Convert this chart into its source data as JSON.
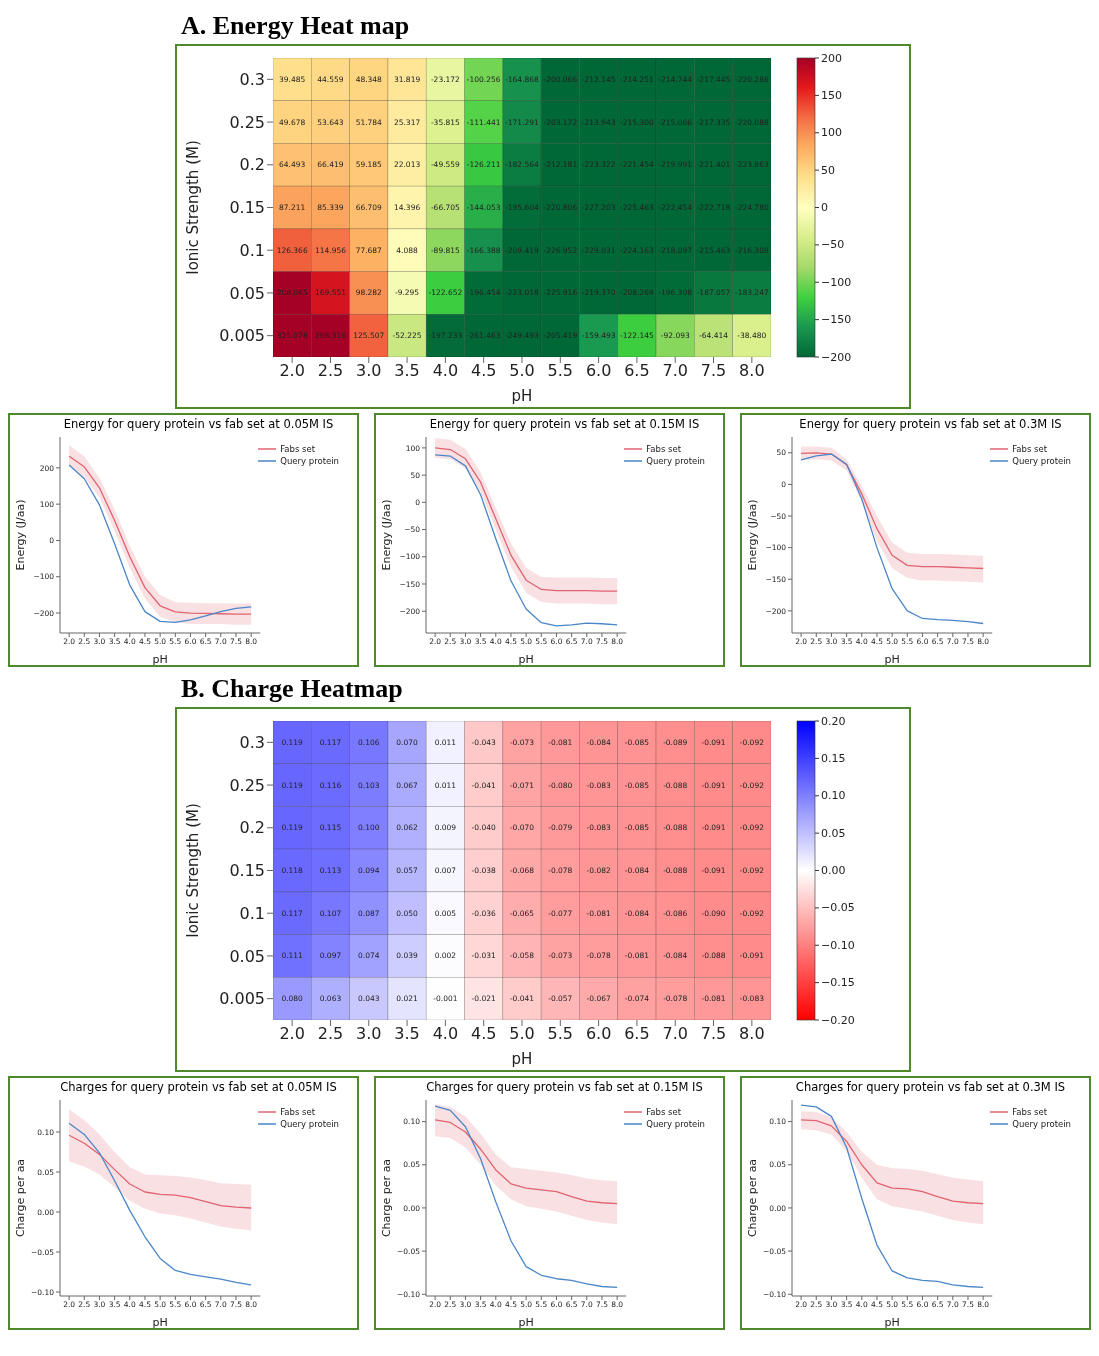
{
  "chart_data": [
    {
      "type": "heatmap",
      "title": "A. Energy Heat map",
      "xlabel": "pH",
      "ylabel": "Ionic Strength (M)",
      "categories": [
        "2.0",
        "2.5",
        "3.0",
        "3.5",
        "4.0",
        "4.5",
        "5.0",
        "5.5",
        "6.0",
        "6.5",
        "7.0",
        "7.5",
        "8.0"
      ],
      "y_categories": [
        "0.3",
        "0.25",
        "0.2",
        "0.15",
        "0.1",
        "0.05",
        "0.005"
      ],
      "cells": [
        [
          39.485,
          44.559,
          48.348,
          31.819,
          -23.172,
          -100.256,
          -164.868,
          -200.066,
          -212.145,
          -214.251,
          -214.744,
          -217.445,
          -220.286
        ],
        [
          49.678,
          53.643,
          51.784,
          25.317,
          -35.815,
          -111.441,
          -171.291,
          -203.172,
          -213.943,
          -215.3,
          -215.066,
          -217.335,
          -220.088
        ],
        [
          64.493,
          66.419,
          59.185,
          22.013,
          -49.559,
          -126.211,
          -182.564,
          -212.181,
          -223.322,
          -221.454,
          -219.991,
          -221.401,
          -223.863
        ],
        [
          87.211,
          85.339,
          66.709,
          14.396,
          -66.705,
          -144.053,
          -195.604,
          -220.806,
          -227.203,
          -225.463,
          -222.454,
          -222.718,
          -224.78
        ],
        [
          126.366,
          114.956,
          77.687,
          4.088,
          -89.815,
          -166.388,
          -209.419,
          -226.952,
          -229.031,
          -224.163,
          -218.097,
          -215.463,
          -216.308
        ],
        [
          208.065,
          169.551,
          98.282,
          -9.295,
          -122.652,
          -196.454,
          -223.018,
          -225.916,
          -219.37,
          -208.269,
          -196.308,
          -187.057,
          -183.247
        ],
        [
          325.078,
          288.316,
          125.507,
          -52.225,
          -197.233,
          -261.463,
          -249.493,
          -205.419,
          -159.493,
          -122.145,
          -92.093,
          -64.414,
          -38.48
        ]
      ],
      "cell_labels": [
        [
          "39.485",
          "44.559",
          "48.348",
          "31.819",
          "-23.172",
          "-100.256",
          "-164.868",
          "-200.066",
          "-212.145",
          "-214.251",
          "-214.744",
          "-217.445",
          "-220.286"
        ],
        [
          "49.678",
          "53.643",
          "51.784",
          "25.317",
          "-35.815",
          "-111.441",
          "-171.291",
          "-203.172",
          "-213.943",
          "-215.300",
          "-215.066",
          "-217.335",
          "-220.088"
        ],
        [
          "64.493",
          "66.419",
          "59.185",
          "22.013",
          "-49.559",
          "-126.211",
          "-182.564",
          "-212.181",
          "-223.322",
          "-221.454",
          "-219.991",
          "-221.401",
          "-223.863"
        ],
        [
          "87.211",
          "85.339",
          "66.709",
          "14.396",
          "-66.705",
          "-144.053",
          "-195.604",
          "-220.806",
          "-227.203",
          "-225.463",
          "-222.454",
          "-222.718",
          "-224.780"
        ],
        [
          "126.366",
          "114.956",
          "77.687",
          "4.088",
          "-89.815",
          "-166.388",
          "-209.419",
          "-226.952",
          "-229.031",
          "-224.163",
          "-218.097",
          "-215.463",
          "-216.308"
        ],
        [
          "208.065",
          "169.551",
          "98.282",
          "-9.295",
          "-122.652",
          "-196.454",
          "-223.018",
          "-225.916",
          "-219.370",
          "-208.269",
          "-196.308",
          "-187.057",
          "-183.247"
        ],
        [
          "325.078",
          "288.316",
          "125.507",
          "-52.225",
          "-197.233",
          "-261.463",
          "-249.493",
          "-205.419",
          "-159.493",
          "-122.145",
          "-92.093",
          "-64.414",
          "-38.480"
        ]
      ],
      "clim": [
        -200,
        200
      ],
      "cticks": [
        {
          "value": -200,
          "label": "−200"
        },
        {
          "value": -150,
          "label": "−150"
        },
        {
          "value": -100,
          "label": "−100"
        },
        {
          "value": -50,
          "label": "−50"
        },
        0,
        50,
        100,
        150,
        200
      ],
      "colors": [
        "#006837",
        "#1a9850",
        "#3fd13f",
        "#a6d96a",
        "#d9ef8b",
        "#ffffbf",
        "#fee08b",
        "#fdae61",
        "#f46d43",
        "#e31a1c",
        "#a50026"
      ]
    },
    {
      "type": "line",
      "title": "Energy for query protein vs fab set at 0.05M IS",
      "xlabel": "pH",
      "ylabel": "Energy (J/aa)",
      "x": [
        2,
        2.5,
        3,
        3.5,
        4,
        4.5,
        5,
        5.5,
        6,
        6.5,
        7,
        7.5,
        8
      ],
      "series": [
        {
          "name": "Fabs set",
          "color": "#e06370",
          "values": [
            232,
            203,
            145,
            55,
            -45,
            -130,
            -180,
            -197,
            -200,
            -201,
            -202,
            -203,
            -203
          ],
          "lower": [
            205,
            175,
            118,
            25,
            -75,
            -160,
            -210,
            -225,
            -230,
            -230,
            -230,
            -232,
            -232
          ],
          "upper": [
            262,
            232,
            172,
            85,
            -15,
            -100,
            -150,
            -170,
            -172,
            -173,
            -173,
            -174,
            -174
          ]
        },
        {
          "name": "Query protein",
          "color": "#4a86c8",
          "values": [
            208,
            170,
            98,
            -9,
            -123,
            -196,
            -223,
            -226,
            -219,
            -208,
            -196,
            -187,
            -183
          ]
        }
      ],
      "xlim": [
        1.7,
        8.3
      ],
      "ylim": [
        -255,
        285
      ],
      "xticks": [
        {
          "value": 2,
          "label": "2.0"
        },
        {
          "value": 2.5,
          "label": "2.5"
        },
        {
          "value": 3,
          "label": "3.0"
        },
        {
          "value": 3.5,
          "label": "3.5"
        },
        {
          "value": 4,
          "label": "4.0"
        },
        {
          "value": 4.5,
          "label": "4.5"
        },
        {
          "value": 5,
          "label": "5.0"
        },
        {
          "value": 5.5,
          "label": "5.5"
        },
        {
          "value": 6,
          "label": "6.0"
        },
        {
          "value": 6.5,
          "label": "6.5"
        },
        {
          "value": 7,
          "label": "7.0"
        },
        {
          "value": 7.5,
          "label": "7.5"
        },
        {
          "value": 8,
          "label": "8.0"
        }
      ],
      "yticks": [
        {
          "value": -200,
          "label": "−200"
        },
        {
          "value": -100,
          "label": "−100"
        },
        0,
        100,
        200
      ],
      "legend": "top right"
    },
    {
      "type": "line",
      "title": "Energy for query protein vs fab set at 0.15M IS",
      "xlabel": "pH",
      "ylabel": "Energy (J/aa)",
      "x": [
        2,
        2.5,
        3,
        3.5,
        4,
        4.5,
        5,
        5.5,
        6,
        6.5,
        7,
        7.5,
        8
      ],
      "series": [
        {
          "name": "Fabs set",
          "color": "#e06370",
          "values": [
            100,
            97,
            80,
            37,
            -30,
            -97,
            -143,
            -160,
            -162,
            -162,
            -162,
            -163,
            -163
          ],
          "lower": [
            82,
            79,
            62,
            19,
            -50,
            -119,
            -166,
            -183,
            -186,
            -186,
            -186,
            -187,
            -187
          ],
          "upper": [
            118,
            115,
            98,
            55,
            -10,
            -75,
            -120,
            -137,
            -138,
            -138,
            -138,
            -139,
            -139
          ]
        },
        {
          "name": "Query protein",
          "color": "#4a86c8",
          "values": [
            87,
            85,
            67,
            14,
            -67,
            -144,
            -196,
            -221,
            -227,
            -225,
            -222,
            -223,
            -225
          ]
        }
      ],
      "xlim": [
        1.7,
        8.3
      ],
      "ylim": [
        -240,
        120
      ],
      "xticks": [
        {
          "value": 2,
          "label": "2.0"
        },
        {
          "value": 2.5,
          "label": "2.5"
        },
        {
          "value": 3,
          "label": "3.0"
        },
        {
          "value": 3.5,
          "label": "3.5"
        },
        {
          "value": 4,
          "label": "4.0"
        },
        {
          "value": 4.5,
          "label": "4.5"
        },
        {
          "value": 5,
          "label": "5.0"
        },
        {
          "value": 5.5,
          "label": "5.5"
        },
        {
          "value": 6,
          "label": "6.0"
        },
        {
          "value": 6.5,
          "label": "6.5"
        },
        {
          "value": 7,
          "label": "7.0"
        },
        {
          "value": 7.5,
          "label": "7.5"
        },
        {
          "value": 8,
          "label": "8.0"
        }
      ],
      "yticks": [
        {
          "value": -200,
          "label": "−200"
        },
        {
          "value": -150,
          "label": "−150"
        },
        {
          "value": -100,
          "label": "−100"
        },
        {
          "value": -50,
          "label": "−50"
        },
        0,
        50,
        100
      ],
      "legend": "top right"
    },
    {
      "type": "line",
      "title": "Energy for query protein vs fab set at 0.3M IS",
      "xlabel": "pH",
      "ylabel": "Energy (J/aa)",
      "x": [
        2,
        2.5,
        3,
        3.5,
        4,
        4.5,
        5,
        5.5,
        6,
        6.5,
        7,
        7.5,
        8
      ],
      "series": [
        {
          "name": "Fabs set",
          "color": "#e06370",
          "values": [
            49,
            50,
            48,
            31,
            -15,
            -70,
            -112,
            -128,
            -130,
            -130,
            -131,
            -132,
            -133
          ],
          "lower": [
            38,
            40,
            38,
            22,
            -27,
            -90,
            -132,
            -148,
            -152,
            -152,
            -153,
            -154,
            -155
          ],
          "upper": [
            60,
            60,
            58,
            40,
            -3,
            -50,
            -92,
            -108,
            -110,
            -110,
            -111,
            -112,
            -113
          ]
        },
        {
          "name": "Query protein",
          "color": "#4a86c8",
          "values": [
            39,
            45,
            48,
            32,
            -23,
            -100,
            -165,
            -200,
            -212,
            -214,
            -215,
            -217,
            -220
          ]
        }
      ],
      "xlim": [
        1.7,
        8.3
      ],
      "ylim": [
        -235,
        75
      ],
      "xticks": [
        {
          "value": 2,
          "label": "2.0"
        },
        {
          "value": 2.5,
          "label": "2.5"
        },
        {
          "value": 3,
          "label": "3.0"
        },
        {
          "value": 3.5,
          "label": "3.5"
        },
        {
          "value": 4,
          "label": "4.0"
        },
        {
          "value": 4.5,
          "label": "4.5"
        },
        {
          "value": 5,
          "label": "5.0"
        },
        {
          "value": 5.5,
          "label": "5.5"
        },
        {
          "value": 6,
          "label": "6.0"
        },
        {
          "value": 6.5,
          "label": "6.5"
        },
        {
          "value": 7,
          "label": "7.0"
        },
        {
          "value": 7.5,
          "label": "7.5"
        },
        {
          "value": 8,
          "label": "8.0"
        }
      ],
      "yticks": [
        {
          "value": -200,
          "label": "−200"
        },
        {
          "value": -150,
          "label": "−150"
        },
        {
          "value": -100,
          "label": "−100"
        },
        {
          "value": -50,
          "label": "−50"
        },
        0,
        50
      ],
      "legend": "top right"
    },
    {
      "type": "heatmap",
      "title": "B. Charge Heatmap",
      "xlabel": "pH",
      "ylabel": "Ionic Strength (M)",
      "categories": [
        "2.0",
        "2.5",
        "3.0",
        "3.5",
        "4.0",
        "4.5",
        "5.0",
        "5.5",
        "6.0",
        "6.5",
        "7.0",
        "7.5",
        "8.0"
      ],
      "y_categories": [
        "0.3",
        "0.25",
        "0.2",
        "0.15",
        "0.1",
        "0.05",
        "0.005"
      ],
      "cells": [
        [
          0.119,
          0.117,
          0.106,
          0.07,
          0.011,
          -0.043,
          -0.073,
          -0.081,
          -0.084,
          -0.085,
          -0.089,
          -0.091,
          -0.092
        ],
        [
          0.119,
          0.116,
          0.103,
          0.067,
          0.011,
          -0.041,
          -0.071,
          -0.08,
          -0.083,
          -0.085,
          -0.088,
          -0.091,
          -0.092
        ],
        [
          0.119,
          0.115,
          0.1,
          0.062,
          0.009,
          -0.04,
          -0.07,
          -0.079,
          -0.083,
          -0.085,
          -0.088,
          -0.091,
          -0.092
        ],
        [
          0.118,
          0.113,
          0.094,
          0.057,
          0.007,
          -0.038,
          -0.068,
          -0.078,
          -0.082,
          -0.084,
          -0.088,
          -0.091,
          -0.092
        ],
        [
          0.117,
          0.107,
          0.087,
          0.05,
          0.005,
          -0.036,
          -0.065,
          -0.077,
          -0.081,
          -0.084,
          -0.086,
          -0.09,
          -0.092
        ],
        [
          0.111,
          0.097,
          0.074,
          0.039,
          0.002,
          -0.031,
          -0.058,
          -0.073,
          -0.078,
          -0.081,
          -0.084,
          -0.088,
          -0.091
        ],
        [
          0.08,
          0.063,
          0.043,
          0.021,
          -0.001,
          -0.021,
          -0.041,
          -0.057,
          -0.067,
          -0.074,
          -0.078,
          -0.081,
          -0.083
        ]
      ],
      "cell_labels": [
        [
          "0.119",
          "0.117",
          "0.106",
          "0.070",
          "0.011",
          "-0.043",
          "-0.073",
          "-0.081",
          "-0.084",
          "-0.085",
          "-0.089",
          "-0.091",
          "-0.092"
        ],
        [
          "0.119",
          "0.116",
          "0.103",
          "0.067",
          "0.011",
          "-0.041",
          "-0.071",
          "-0.080",
          "-0.083",
          "-0.085",
          "-0.088",
          "-0.091",
          "-0.092"
        ],
        [
          "0.119",
          "0.115",
          "0.100",
          "0.062",
          "0.009",
          "-0.040",
          "-0.070",
          "-0.079",
          "-0.083",
          "-0.085",
          "-0.088",
          "-0.091",
          "-0.092"
        ],
        [
          "0.118",
          "0.113",
          "0.094",
          "0.057",
          "0.007",
          "-0.038",
          "-0.068",
          "-0.078",
          "-0.082",
          "-0.084",
          "-0.088",
          "-0.091",
          "-0.092"
        ],
        [
          "0.117",
          "0.107",
          "0.087",
          "0.050",
          "0.005",
          "-0.036",
          "-0.065",
          "-0.077",
          "-0.081",
          "-0.084",
          "-0.086",
          "-0.090",
          "-0.092"
        ],
        [
          "0.111",
          "0.097",
          "0.074",
          "0.039",
          "0.002",
          "-0.031",
          "-0.058",
          "-0.073",
          "-0.078",
          "-0.081",
          "-0.084",
          "-0.088",
          "-0.091"
        ],
        [
          "0.080",
          "0.063",
          "0.043",
          "0.021",
          "-0.001",
          "-0.021",
          "-0.041",
          "-0.057",
          "-0.067",
          "-0.074",
          "-0.078",
          "-0.081",
          "-0.083"
        ]
      ],
      "clim": [
        -0.2,
        0.2
      ],
      "cticks": [
        {
          "value": -0.2,
          "label": "−0.20"
        },
        {
          "value": -0.15,
          "label": "−0.15"
        },
        {
          "value": -0.1,
          "label": "−0.10"
        },
        {
          "value": -0.05,
          "label": "−0.05"
        },
        {
          "value": 0,
          "label": "0.00"
        },
        {
          "value": 0.05,
          "label": "0.05"
        },
        {
          "value": 0.1,
          "label": "0.10"
        },
        {
          "value": 0.15,
          "label": "0.15"
        },
        {
          "value": 0.2,
          "label": "0.20"
        }
      ],
      "colors": [
        "#ff0000",
        "#ffffff",
        "#0000ff"
      ]
    },
    {
      "type": "line",
      "title": "Charges for query protein vs fab set at 0.05M IS",
      "xlabel": "pH",
      "ylabel": "Charge per aa",
      "x": [
        2,
        2.5,
        3,
        3.5,
        4,
        4.5,
        5,
        5.5,
        6,
        6.5,
        7,
        7.5,
        8
      ],
      "series": [
        {
          "name": "Fabs set",
          "color": "#e06370",
          "values": [
            0.096,
            0.086,
            0.072,
            0.053,
            0.035,
            0.025,
            0.022,
            0.021,
            0.018,
            0.013,
            0.008,
            0.006,
            0.005
          ],
          "lower": [
            0.063,
            0.057,
            0.047,
            0.031,
            0.014,
            0.004,
            -0.002,
            -0.004,
            -0.008,
            -0.013,
            -0.018,
            -0.021,
            -0.023
          ],
          "upper": [
            0.128,
            0.115,
            0.097,
            0.075,
            0.056,
            0.047,
            0.046,
            0.045,
            0.043,
            0.04,
            0.036,
            0.035,
            0.034
          ]
        },
        {
          "name": "Query protein",
          "color": "#4a86c8",
          "values": [
            0.111,
            0.097,
            0.074,
            0.039,
            0.002,
            -0.031,
            -0.058,
            -0.073,
            -0.078,
            -0.081,
            -0.084,
            -0.088,
            -0.091
          ]
        }
      ],
      "xlim": [
        1.7,
        8.3
      ],
      "ylim": [
        -0.105,
        0.14
      ],
      "xticks": [
        {
          "value": 2,
          "label": "2.0"
        },
        {
          "value": 2.5,
          "label": "2.5"
        },
        {
          "value": 3,
          "label": "3.0"
        },
        {
          "value": 3.5,
          "label": "3.5"
        },
        {
          "value": 4,
          "label": "4.0"
        },
        {
          "value": 4.5,
          "label": "4.5"
        },
        {
          "value": 5,
          "label": "5.0"
        },
        {
          "value": 5.5,
          "label": "5.5"
        },
        {
          "value": 6,
          "label": "6.0"
        },
        {
          "value": 6.5,
          "label": "6.5"
        },
        {
          "value": 7,
          "label": "7.0"
        },
        {
          "value": 7.5,
          "label": "7.5"
        },
        {
          "value": 8,
          "label": "8.0"
        }
      ],
      "yticks": [
        {
          "value": -0.1,
          "label": "−0.10"
        },
        {
          "value": -0.05,
          "label": "−0.05"
        },
        {
          "value": 0,
          "label": "0.00"
        },
        {
          "value": 0.05,
          "label": "0.05"
        },
        {
          "value": 0.1,
          "label": "0.10"
        }
      ],
      "legend": "top right"
    },
    {
      "type": "line",
      "title": "Charges for query protein vs fab set at 0.15M IS",
      "xlabel": "pH",
      "ylabel": "Charge per aa",
      "x": [
        2,
        2.5,
        3,
        3.5,
        4,
        4.5,
        5,
        5.5,
        6,
        6.5,
        7,
        7.5,
        8
      ],
      "series": [
        {
          "name": "Fabs set",
          "color": "#e06370",
          "values": [
            0.102,
            0.099,
            0.088,
            0.068,
            0.044,
            0.028,
            0.023,
            0.021,
            0.019,
            0.013,
            0.008,
            0.006,
            0.005
          ],
          "lower": [
            0.083,
            0.081,
            0.07,
            0.05,
            0.026,
            0.01,
            0.002,
            -0.001,
            -0.004,
            -0.009,
            -0.014,
            -0.017,
            -0.019
          ],
          "upper": [
            0.12,
            0.117,
            0.106,
            0.086,
            0.062,
            0.047,
            0.045,
            0.043,
            0.041,
            0.038,
            0.034,
            0.032,
            0.031
          ]
        },
        {
          "name": "Query protein",
          "color": "#4a86c8",
          "values": [
            0.118,
            0.113,
            0.094,
            0.057,
            0.007,
            -0.038,
            -0.068,
            -0.078,
            -0.082,
            -0.084,
            -0.088,
            -0.091,
            -0.092
          ]
        }
      ],
      "xlim": [
        1.7,
        8.3
      ],
      "ylim": [
        -0.102,
        0.125
      ],
      "xticks": [
        {
          "value": 2,
          "label": "2.0"
        },
        {
          "value": 2.5,
          "label": "2.5"
        },
        {
          "value": 3,
          "label": "3.0"
        },
        {
          "value": 3.5,
          "label": "3.5"
        },
        {
          "value": 4,
          "label": "4.0"
        },
        {
          "value": 4.5,
          "label": "4.5"
        },
        {
          "value": 5,
          "label": "5.0"
        },
        {
          "value": 5.5,
          "label": "5.5"
        },
        {
          "value": 6,
          "label": "6.0"
        },
        {
          "value": 6.5,
          "label": "6.5"
        },
        {
          "value": 7,
          "label": "7.0"
        },
        {
          "value": 7.5,
          "label": "7.5"
        },
        {
          "value": 8,
          "label": "8.0"
        }
      ],
      "yticks": [
        {
          "value": -0.1,
          "label": "−0.10"
        },
        {
          "value": -0.05,
          "label": "−0.05"
        },
        {
          "value": 0,
          "label": "0.00"
        },
        {
          "value": 0.05,
          "label": "0.05"
        },
        {
          "value": 0.1,
          "label": "0.10"
        }
      ],
      "legend": "top right"
    },
    {
      "type": "line",
      "title": "Charges for query protein vs fab set at 0.3M IS",
      "xlabel": "pH",
      "ylabel": "Charge per aa",
      "x": [
        2,
        2.5,
        3,
        3.5,
        4,
        4.5,
        5,
        5.5,
        6,
        6.5,
        7,
        7.5,
        8
      ],
      "series": [
        {
          "name": "Fabs set",
          "color": "#e06370",
          "values": [
            0.102,
            0.101,
            0.095,
            0.077,
            0.05,
            0.029,
            0.023,
            0.022,
            0.019,
            0.013,
            0.008,
            0.006,
            0.005
          ],
          "lower": [
            0.091,
            0.09,
            0.085,
            0.066,
            0.035,
            0.01,
            0.002,
            -0.001,
            -0.004,
            -0.009,
            -0.014,
            -0.017,
            -0.019
          ],
          "upper": [
            0.112,
            0.111,
            0.105,
            0.088,
            0.065,
            0.05,
            0.046,
            0.045,
            0.043,
            0.039,
            0.035,
            0.033,
            0.031
          ]
        },
        {
          "name": "Query protein",
          "color": "#4a86c8",
          "values": [
            0.119,
            0.117,
            0.106,
            0.07,
            0.011,
            -0.043,
            -0.073,
            -0.081,
            -0.084,
            -0.085,
            -0.089,
            -0.091,
            -0.092
          ]
        }
      ],
      "xlim": [
        1.7,
        8.3
      ],
      "ylim": [
        -0.102,
        0.125
      ],
      "xticks": [
        {
          "value": 2,
          "label": "2.0"
        },
        {
          "value": 2.5,
          "label": "2.5"
        },
        {
          "value": 3,
          "label": "3.0"
        },
        {
          "value": 3.5,
          "label": "3.5"
        },
        {
          "value": 4,
          "label": "4.0"
        },
        {
          "value": 4.5,
          "label": "4.5"
        },
        {
          "value": 5,
          "label": "5.0"
        },
        {
          "value": 5.5,
          "label": "5.5"
        },
        {
          "value": 6,
          "label": "6.0"
        },
        {
          "value": 6.5,
          "label": "6.5"
        },
        {
          "value": 7,
          "label": "7.0"
        },
        {
          "value": 7.5,
          "label": "7.5"
        },
        {
          "value": 8,
          "label": "8.0"
        }
      ],
      "yticks": [
        {
          "value": -0.1,
          "label": "−0.10"
        },
        {
          "value": -0.05,
          "label": "−0.05"
        },
        {
          "value": 0,
          "label": "0.00"
        },
        {
          "value": 0.05,
          "label": "0.05"
        },
        {
          "value": 0.1,
          "label": "0.10"
        }
      ],
      "legend": "top right"
    }
  ]
}
